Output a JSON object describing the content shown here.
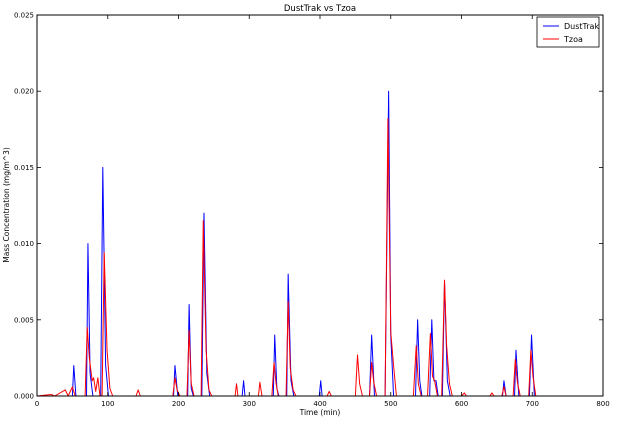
{
  "chart_data": {
    "type": "line",
    "title": "DustTrak vs Tzoa",
    "xlabel": "Time (min)",
    "ylabel": "Mass Concentration (mg/m^3)",
    "xlim": [
      0,
      800
    ],
    "ylim": [
      0,
      0.025
    ],
    "xticks": [
      0,
      100,
      200,
      300,
      400,
      500,
      600,
      700,
      800
    ],
    "xtick_labels": [
      "0",
      "100",
      "200",
      "300",
      "400",
      "500",
      "600",
      "700",
      "800"
    ],
    "yticks": [
      0,
      0.005,
      0.01,
      0.015,
      0.02,
      0.025
    ],
    "ytick_labels": [
      "0.000",
      "0.005",
      "0.010",
      "0.015",
      "0.020",
      "0.025"
    ],
    "grid": false,
    "legend_position": "top-right",
    "series": [
      {
        "name": "DustTrak",
        "color": "#0000ff",
        "points": [
          [
            0,
            0
          ],
          [
            50,
            0
          ],
          [
            52,
            0.002
          ],
          [
            55,
            0
          ],
          [
            70,
            0
          ],
          [
            72,
            0.01
          ],
          [
            75,
            0.0015
          ],
          [
            79,
            0
          ],
          [
            90,
            0
          ],
          [
            93,
            0.015
          ],
          [
            97,
            0.002
          ],
          [
            101,
            0
          ],
          [
            193,
            0
          ],
          [
            195,
            0.002
          ],
          [
            199,
            0
          ],
          [
            213,
            0
          ],
          [
            215,
            0.006
          ],
          [
            218,
            0.0005
          ],
          [
            221,
            0
          ],
          [
            233,
            0
          ],
          [
            236,
            0.012
          ],
          [
            240,
            0.0015
          ],
          [
            244,
            0
          ],
          [
            290,
            0
          ],
          [
            292,
            0.001
          ],
          [
            294,
            0
          ],
          [
            334,
            0
          ],
          [
            336,
            0.004
          ],
          [
            339,
            0.0005
          ],
          [
            342,
            0
          ],
          [
            353,
            0
          ],
          [
            355,
            0.008
          ],
          [
            359,
            0.001
          ],
          [
            363,
            0
          ],
          [
            399,
            0
          ],
          [
            401,
            0.001
          ],
          [
            403,
            0
          ],
          [
            470,
            0
          ],
          [
            473,
            0.004
          ],
          [
            477,
            0
          ],
          [
            492,
            0
          ],
          [
            497,
            0.02
          ],
          [
            500,
            0.004
          ],
          [
            504,
            0
          ],
          [
            535,
            0
          ],
          [
            538,
            0.005
          ],
          [
            541,
            0.001
          ],
          [
            544,
            0
          ],
          [
            555,
            0
          ],
          [
            558,
            0.005
          ],
          [
            561,
            0.001
          ],
          [
            564,
            0.001
          ],
          [
            567,
            0
          ],
          [
            573,
            0
          ],
          [
            576,
            0.0075
          ],
          [
            580,
            0.001
          ],
          [
            584,
            0
          ],
          [
            658,
            0
          ],
          [
            660,
            0.001
          ],
          [
            663,
            0
          ],
          [
            675,
            0
          ],
          [
            677,
            0.003
          ],
          [
            681,
            0
          ],
          [
            696,
            0
          ],
          [
            699,
            0.004
          ],
          [
            703,
            0
          ],
          [
            720,
            0
          ]
        ]
      },
      {
        "name": "Tzoa",
        "color": "#ff0000",
        "points": [
          [
            0,
            0
          ],
          [
            20,
            0.0001
          ],
          [
            25,
            0
          ],
          [
            40,
            0.0004
          ],
          [
            44,
            0
          ],
          [
            50,
            0.0006
          ],
          [
            54,
            0
          ],
          [
            68,
            0
          ],
          [
            71,
            0.0045
          ],
          [
            74,
            0.0025
          ],
          [
            78,
            0.001
          ],
          [
            80,
            0.0012
          ],
          [
            83,
            0.0003
          ],
          [
            86,
            0.0012
          ],
          [
            89,
            0
          ],
          [
            92,
            0
          ],
          [
            95,
            0.0094
          ],
          [
            99,
            0.003
          ],
          [
            103,
            0.0005
          ],
          [
            107,
            0
          ],
          [
            140,
            0
          ],
          [
            143,
            0.0004
          ],
          [
            146,
            0
          ],
          [
            192,
            0
          ],
          [
            195,
            0.0012
          ],
          [
            198,
            0.0004
          ],
          [
            202,
            0
          ],
          [
            212,
            0
          ],
          [
            215,
            0.0043
          ],
          [
            218,
            0.0008
          ],
          [
            222,
            0
          ],
          [
            232,
            0
          ],
          [
            235,
            0.0115
          ],
          [
            239,
            0.003
          ],
          [
            243,
            0.0004
          ],
          [
            247,
            0
          ],
          [
            280,
            0
          ],
          [
            282,
            0.0008
          ],
          [
            284,
            0
          ],
          [
            313,
            0
          ],
          [
            315,
            0.0009
          ],
          [
            318,
            0
          ],
          [
            332,
            0
          ],
          [
            335,
            0.0022
          ],
          [
            338,
            0.0008
          ],
          [
            341,
            0
          ],
          [
            352,
            0
          ],
          [
            355,
            0.0062
          ],
          [
            358,
            0.0018
          ],
          [
            362,
            0.0004
          ],
          [
            366,
            0
          ],
          [
            410,
            0
          ],
          [
            413,
            0.0003
          ],
          [
            416,
            0
          ],
          [
            450,
            0
          ],
          [
            453,
            0.0027
          ],
          [
            456,
            0.0008
          ],
          [
            460,
            0
          ],
          [
            470,
            0
          ],
          [
            473,
            0.0022
          ],
          [
            476,
            0.0009
          ],
          [
            480,
            0
          ],
          [
            492,
            0
          ],
          [
            496,
            0.0182
          ],
          [
            500,
            0.0042
          ],
          [
            504,
            0.002
          ],
          [
            508,
            0
          ],
          [
            532,
            0
          ],
          [
            536,
            0.0033
          ],
          [
            539,
            0.0008
          ],
          [
            543,
            0
          ],
          [
            552,
            0
          ],
          [
            556,
            0.0041
          ],
          [
            559,
            0.0013
          ],
          [
            562,
            0.001
          ],
          [
            566,
            0
          ],
          [
            572,
            0
          ],
          [
            576,
            0.0076
          ],
          [
            579,
            0.0033
          ],
          [
            583,
            0.0008
          ],
          [
            587,
            0
          ],
          [
            600,
            0
          ],
          [
            604,
            0.0002
          ],
          [
            607,
            0
          ],
          [
            640,
            0
          ],
          [
            643,
            0.0002
          ],
          [
            646,
            0
          ],
          [
            657,
            0
          ],
          [
            660,
            0.0006
          ],
          [
            663,
            0
          ],
          [
            673,
            0
          ],
          [
            676,
            0.0024
          ],
          [
            679,
            0.0009
          ],
          [
            683,
            0
          ],
          [
            695,
            0
          ],
          [
            698,
            0.003
          ],
          [
            701,
            0.0013
          ],
          [
            705,
            0
          ],
          [
            720,
            0
          ]
        ]
      }
    ]
  }
}
